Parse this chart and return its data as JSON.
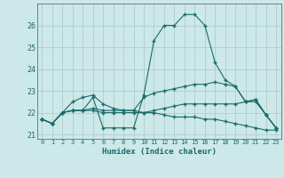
{
  "xlabel": "Humidex (Indice chaleur)",
  "background_color": "#cce8e8",
  "grid_color": "#aac8c8",
  "line_color": "#1a6b6b",
  "xlim": [
    -0.5,
    23.5
  ],
  "ylim": [
    20.8,
    27.0
  ],
  "yticks": [
    21,
    22,
    23,
    24,
    25,
    26
  ],
  "xtick_labels": [
    "0",
    "1",
    "2",
    "3",
    "4",
    "5",
    "6",
    "7",
    "8",
    "9",
    "10",
    "11",
    "12",
    "13",
    "14",
    "15",
    "16",
    "17",
    "18",
    "19",
    "20",
    "21",
    "22",
    "23"
  ],
  "lines": [
    [
      21.7,
      21.5,
      22.0,
      22.1,
      22.1,
      22.7,
      21.3,
      21.3,
      21.3,
      21.3,
      22.8,
      25.3,
      26.0,
      26.0,
      26.5,
      26.5,
      26.0,
      24.3,
      23.5,
      23.2,
      22.5,
      22.6,
      21.9,
      21.3
    ],
    [
      21.7,
      21.5,
      22.0,
      22.5,
      22.7,
      22.8,
      22.4,
      22.2,
      22.1,
      22.1,
      22.7,
      22.9,
      23.0,
      23.1,
      23.2,
      23.3,
      23.3,
      23.4,
      23.3,
      23.2,
      22.5,
      22.6,
      21.9,
      21.3
    ],
    [
      21.7,
      21.5,
      22.0,
      22.1,
      22.1,
      22.2,
      22.1,
      22.1,
      22.1,
      22.1,
      22.0,
      22.0,
      21.9,
      21.8,
      21.8,
      21.8,
      21.7,
      21.7,
      21.6,
      21.5,
      21.4,
      21.3,
      21.2,
      21.2
    ],
    [
      21.7,
      21.5,
      22.0,
      22.1,
      22.1,
      22.1,
      22.0,
      22.0,
      22.0,
      22.0,
      22.0,
      22.1,
      22.2,
      22.3,
      22.4,
      22.4,
      22.4,
      22.4,
      22.4,
      22.4,
      22.5,
      22.5,
      21.9,
      21.3
    ]
  ]
}
